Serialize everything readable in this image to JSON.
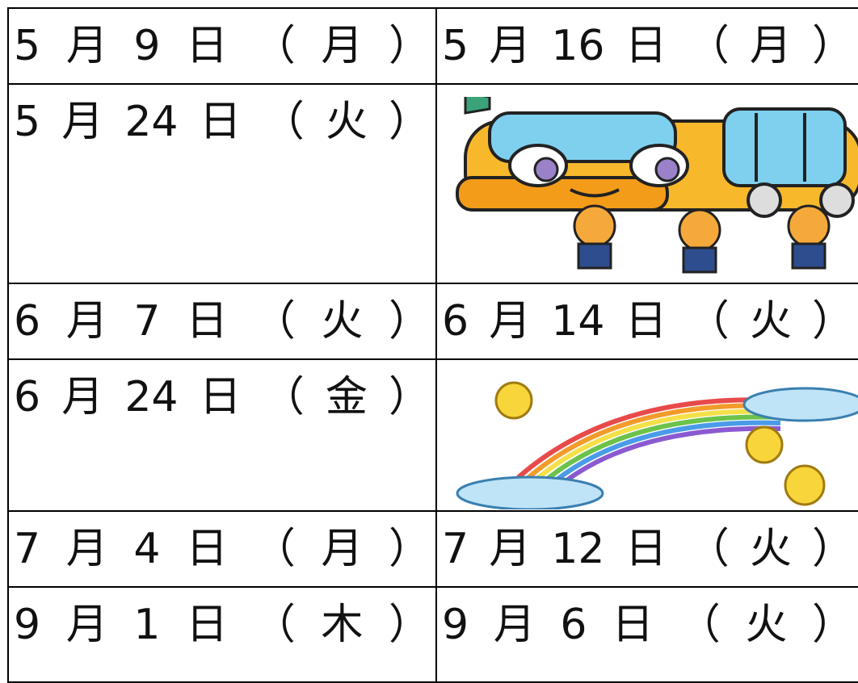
{
  "table": {
    "rows": [
      [
        "5月9日（月）",
        "5月16日（月）"
      ],
      [
        "5月24日（火）"
      ],
      [
        "6月7日（火）",
        "6月14日（火）"
      ],
      [
        "6月24日（金）"
      ],
      [
        "7月4日（月）",
        "7月12日（火）"
      ],
      [
        "9月1日（木）",
        "9月6日（火）"
      ]
    ]
  }
}
